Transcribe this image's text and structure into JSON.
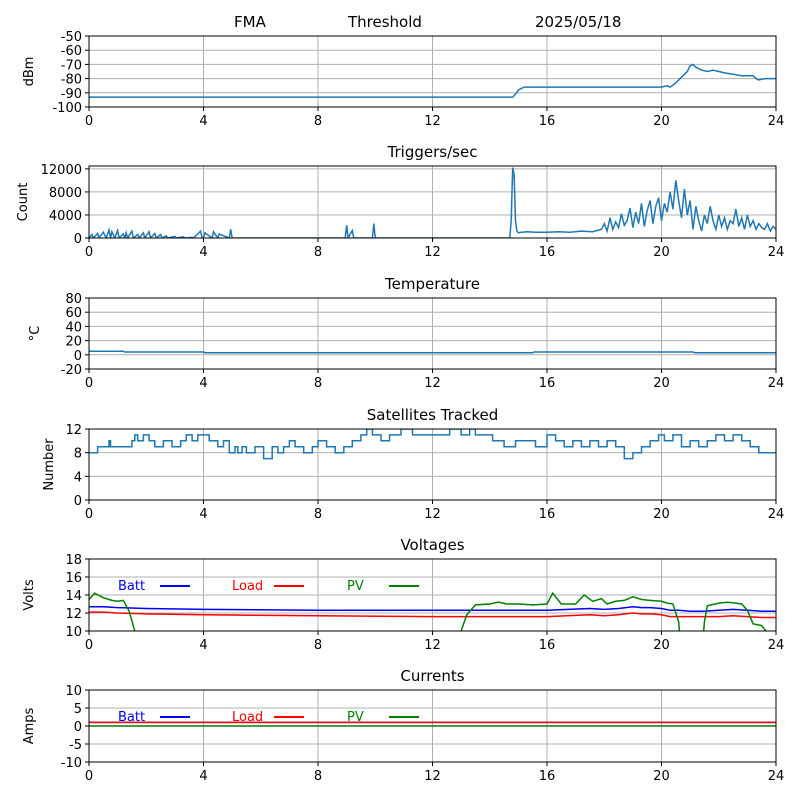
{
  "header": {
    "station": "FMA",
    "subtitle": "Threshold",
    "date": "2025/05/18"
  },
  "colors": {
    "series": "#1f77b4",
    "batt": "#0000ff",
    "load": "#ff0000",
    "pv": "#008000",
    "grid": "#b0b0b0"
  },
  "chart_data": [
    {
      "type": "line",
      "title": "",
      "ylabel": "dBm",
      "xlim": [
        0,
        24
      ],
      "ylim": [
        -100,
        -50
      ],
      "xticks": [
        0,
        4,
        8,
        12,
        16,
        20,
        24
      ],
      "yticks": [
        -100,
        -90,
        -80,
        -70,
        -60,
        -50
      ],
      "grid": true,
      "series": [
        {
          "color": "#1f77b4",
          "x": [
            0,
            14.8,
            14.9,
            15.0,
            15.2,
            16.0,
            16.5,
            17.0,
            18.0,
            19.0,
            19.5,
            19.8,
            20.0,
            20.2,
            20.3,
            20.5,
            20.7,
            20.9,
            21.0,
            21.1,
            21.2,
            21.4,
            21.6,
            21.8,
            22.0,
            22.2,
            22.5,
            22.8,
            23.0,
            23.2,
            23.3,
            23.4,
            23.6,
            24.0
          ],
          "y": [
            -93,
            -93,
            -91,
            -88,
            -86,
            -86,
            -86,
            -86,
            -86,
            -86,
            -86,
            -86,
            -86,
            -85,
            -86,
            -83,
            -79,
            -75,
            -71,
            -70,
            -72,
            -74,
            -75,
            -74,
            -75,
            -76,
            -77,
            -78,
            -78,
            -78,
            -80,
            -81,
            -80,
            -80
          ]
        }
      ]
    },
    {
      "type": "line",
      "title": "Triggers/sec",
      "ylabel": "Count",
      "xlim": [
        0,
        24
      ],
      "ylim": [
        0,
        12500
      ],
      "xticks": [
        0,
        4,
        8,
        12,
        16,
        20,
        24
      ],
      "yticks": [
        0,
        4000,
        8000,
        12000
      ],
      "grid": true,
      "series": [
        {
          "color": "#1f77b4",
          "x": [
            0,
            0.1,
            0.15,
            0.3,
            0.35,
            0.5,
            0.6,
            0.7,
            0.75,
            0.8,
            0.9,
            1.0,
            1.05,
            1.2,
            1.25,
            1.3,
            1.35,
            1.5,
            1.55,
            1.7,
            1.75,
            1.9,
            1.95,
            2.1,
            2.15,
            2.3,
            2.35,
            2.5,
            2.55,
            2.7,
            2.75,
            3.0,
            3.05,
            3.3,
            3.35,
            3.6,
            3.65,
            3.9,
            3.95,
            4.0,
            4.05,
            4.3,
            4.35,
            4.5,
            4.55,
            4.9,
            4.95,
            5.0,
            8.95,
            9.0,
            9.05,
            9.2,
            9.25,
            9.3,
            9.9,
            9.95,
            10.0,
            10.05,
            14.7,
            14.75,
            14.8,
            14.85,
            14.9,
            14.95,
            15.0,
            15.1,
            15.3,
            15.6,
            16.0,
            16.4,
            16.8,
            17.2,
            17.6,
            17.9,
            18.0,
            18.1,
            18.2,
            18.3,
            18.4,
            18.5,
            18.6,
            18.7,
            18.8,
            18.9,
            19.0,
            19.1,
            19.2,
            19.3,
            19.4,
            19.5,
            19.6,
            19.7,
            19.8,
            19.9,
            20.0,
            20.1,
            20.2,
            20.3,
            20.4,
            20.5,
            20.6,
            20.7,
            20.8,
            20.9,
            21.0,
            21.1,
            21.2,
            21.3,
            21.4,
            21.5,
            21.6,
            21.7,
            21.8,
            21.9,
            22.0,
            22.1,
            22.2,
            22.3,
            22.4,
            22.5,
            22.6,
            22.7,
            22.8,
            22.9,
            23.0,
            23.1,
            23.2,
            23.3,
            23.4,
            23.5,
            23.6,
            23.7,
            23.8,
            23.9,
            24.0
          ],
          "y": [
            0,
            600,
            0,
            800,
            0,
            1000,
            0,
            1400,
            0,
            1100,
            0,
            1300,
            0,
            700,
            0,
            900,
            0,
            1200,
            0,
            600,
            0,
            900,
            0,
            1100,
            0,
            800,
            0,
            600,
            0,
            400,
            0,
            300,
            0,
            200,
            0,
            100,
            0,
            1200,
            0,
            0,
            900,
            0,
            1100,
            0,
            700,
            0,
            1500,
            0,
            0,
            2200,
            0,
            1300,
            0,
            0,
            0,
            2500,
            0,
            0,
            0,
            3000,
            12200,
            11000,
            3000,
            1200,
            900,
            1000,
            1100,
            1000,
            1000,
            1100,
            1000,
            1200,
            1100,
            1500,
            2500,
            1200,
            3500,
            1500,
            2800,
            1800,
            4200,
            2200,
            3000,
            5200,
            1800,
            4500,
            2500,
            6000,
            2000,
            4800,
            6500,
            2500,
            5500,
            7000,
            3000,
            6000,
            4500,
            8000,
            5000,
            10000,
            6500,
            3500,
            8500,
            4000,
            6500,
            1500,
            5500,
            3000,
            1200,
            4000,
            2500,
            5500,
            3000,
            1500,
            4000,
            2000,
            3500,
            1500,
            3000,
            2500,
            5000,
            2000,
            3500,
            1500,
            4000,
            2000,
            3000,
            1500,
            2500,
            1800,
            1500,
            2500,
            1200,
            2000,
            1500
          ]
        }
      ]
    },
    {
      "type": "line",
      "title": "Temperature",
      "ylabel": "°C",
      "xlim": [
        0,
        24
      ],
      "ylim": [
        -20,
        80
      ],
      "xticks": [
        0,
        4,
        8,
        12,
        16,
        20,
        24
      ],
      "yticks": [
        -20,
        0,
        20,
        40,
        60,
        80
      ],
      "grid": true,
      "series": [
        {
          "color": "#1f77b4",
          "x": [
            0,
            1.2,
            1.25,
            4.0,
            4.05,
            15.5,
            15.55,
            21.1,
            21.15,
            24.0
          ],
          "y": [
            5,
            5,
            4,
            4,
            3,
            3,
            4,
            4,
            3,
            3
          ]
        }
      ]
    },
    {
      "type": "line",
      "title": "Satellites Tracked",
      "ylabel": "Number",
      "xlim": [
        0,
        24
      ],
      "ylim": [
        0,
        12
      ],
      "xticks": [
        0,
        4,
        8,
        12,
        16,
        20,
        24
      ],
      "yticks": [
        0,
        4,
        8,
        12
      ],
      "grid": true,
      "series": [
        {
          "color": "#1f77b4",
          "step": true,
          "x": [
            0,
            0.3,
            0.7,
            0.75,
            1.5,
            1.6,
            1.7,
            1.9,
            2.1,
            2.3,
            2.6,
            2.9,
            3.2,
            3.4,
            3.6,
            3.8,
            4.2,
            4.5,
            4.7,
            4.9,
            5.1,
            5.2,
            5.35,
            5.5,
            5.8,
            6.1,
            6.4,
            6.6,
            6.8,
            7.0,
            7.2,
            7.5,
            7.8,
            8.0,
            8.3,
            8.6,
            8.9,
            9.2,
            9.5,
            9.7,
            9.9,
            10.2,
            10.5,
            10.9,
            11.3,
            11.7,
            12.1,
            12.6,
            13.0,
            13.3,
            13.5,
            13.8,
            14.1,
            14.5,
            14.9,
            15.2,
            15.6,
            16.0,
            16.3,
            16.6,
            16.9,
            17.2,
            17.5,
            17.8,
            18.1,
            18.4,
            18.7,
            19.0,
            19.3,
            19.6,
            19.9,
            20.1,
            20.4,
            20.7,
            21.0,
            21.3,
            21.6,
            21.9,
            22.2,
            22.5,
            22.8,
            23.1,
            23.4,
            23.7,
            24.0
          ],
          "y": [
            8,
            9,
            10,
            9,
            10,
            11,
            10,
            11,
            10,
            9,
            10,
            9,
            10,
            11,
            10,
            11,
            10,
            9,
            10,
            8,
            9,
            8,
            9,
            8,
            9,
            7,
            9,
            8,
            9,
            10,
            9,
            8,
            9,
            10,
            9,
            8,
            9,
            10,
            11,
            12,
            11,
            10,
            11,
            12,
            11,
            11,
            11,
            12,
            11,
            12,
            11,
            11,
            10,
            9,
            10,
            10,
            9,
            11,
            10,
            9,
            10,
            9,
            10,
            9,
            10,
            9,
            7,
            8,
            9,
            10,
            11,
            10,
            11,
            9,
            10,
            9,
            10,
            11,
            10,
            11,
            10,
            9,
            8,
            8,
            8
          ]
        }
      ]
    },
    {
      "type": "line",
      "title": "Voltages",
      "ylabel": "Volts",
      "xlim": [
        0,
        24
      ],
      "ylim": [
        10,
        18
      ],
      "xticks": [
        0,
        4,
        8,
        12,
        16,
        20,
        24
      ],
      "yticks": [
        10,
        12,
        14,
        16,
        18
      ],
      "grid": true,
      "legend": "top-left",
      "series": [
        {
          "name": "Batt",
          "color": "#0000ff",
          "x": [
            0,
            0.5,
            1.0,
            2.0,
            4.0,
            8.0,
            12.0,
            16.0,
            17.5,
            18.0,
            18.5,
            19.0,
            19.3,
            19.6,
            20.0,
            20.3,
            20.6,
            21.0,
            21.5,
            22.0,
            22.5,
            23.0,
            23.5,
            24.0
          ],
          "y": [
            12.7,
            12.7,
            12.6,
            12.5,
            12.4,
            12.3,
            12.3,
            12.3,
            12.5,
            12.4,
            12.5,
            12.7,
            12.6,
            12.6,
            12.5,
            12.3,
            12.3,
            12.2,
            12.2,
            12.3,
            12.4,
            12.3,
            12.2,
            12.2
          ]
        },
        {
          "name": "Load",
          "color": "#ff0000",
          "x": [
            0,
            0.5,
            1.0,
            2.0,
            4.0,
            8.0,
            12.0,
            16.0,
            17.5,
            18.0,
            18.5,
            19.0,
            19.3,
            19.6,
            20.0,
            20.3,
            20.6,
            21.0,
            21.5,
            22.0,
            22.5,
            23.0,
            23.5,
            24.0
          ],
          "y": [
            12.1,
            12.1,
            12.0,
            11.9,
            11.8,
            11.7,
            11.6,
            11.6,
            11.8,
            11.7,
            11.8,
            12.0,
            11.9,
            11.9,
            11.8,
            11.6,
            11.6,
            11.6,
            11.6,
            11.6,
            11.7,
            11.6,
            11.5,
            11.5
          ]
        },
        {
          "name": "PV",
          "color": "#008000",
          "x": [
            0,
            0.2,
            0.5,
            0.8,
            1.0,
            1.2,
            1.4,
            1.6,
            1.8,
            12.8,
            13.0,
            13.2,
            13.5,
            14.0,
            14.3,
            14.6,
            15.0,
            15.5,
            16.0,
            16.2,
            16.5,
            17.0,
            17.3,
            17.6,
            17.9,
            18.1,
            18.4,
            18.7,
            19.0,
            19.3,
            19.6,
            20.0,
            20.2,
            20.4,
            20.6,
            20.7,
            21.4,
            21.5,
            21.6,
            22.0,
            22.3,
            22.6,
            22.8,
            23.0,
            23.2,
            23.5,
            23.7,
            23.9
          ],
          "y": [
            13.5,
            14.2,
            13.7,
            13.4,
            13.3,
            13.4,
            12.2,
            10.0,
            7.0,
            7.0,
            10.0,
            11.8,
            12.9,
            13.0,
            13.2,
            13.0,
            13.0,
            12.9,
            13.0,
            14.2,
            13.0,
            13.0,
            14.0,
            13.3,
            13.6,
            13.0,
            13.3,
            13.4,
            13.8,
            13.5,
            13.4,
            13.3,
            13.1,
            13.0,
            11.0,
            7.0,
            7.0,
            11.0,
            12.8,
            13.1,
            13.2,
            13.1,
            13.0,
            12.3,
            10.8,
            10.6,
            9.8,
            8.0
          ]
        }
      ]
    },
    {
      "type": "line",
      "title": "Currents",
      "ylabel": "Amps",
      "xlim": [
        0,
        24
      ],
      "ylim": [
        -10,
        10
      ],
      "xticks": [
        0,
        4,
        8,
        12,
        16,
        20,
        24
      ],
      "yticks": [
        -10,
        -5,
        0,
        5,
        10
      ],
      "grid": true,
      "legend": "top-left",
      "series": [
        {
          "name": "Batt",
          "color": "#0000ff",
          "x": [
            0,
            24
          ],
          "y": [
            1.0,
            1.0
          ]
        },
        {
          "name": "Load",
          "color": "#ff0000",
          "x": [
            0,
            24
          ],
          "y": [
            1.0,
            1.0
          ]
        },
        {
          "name": "PV",
          "color": "#008000",
          "x": [
            0,
            24
          ],
          "y": [
            0.0,
            0.0
          ]
        }
      ]
    }
  ]
}
